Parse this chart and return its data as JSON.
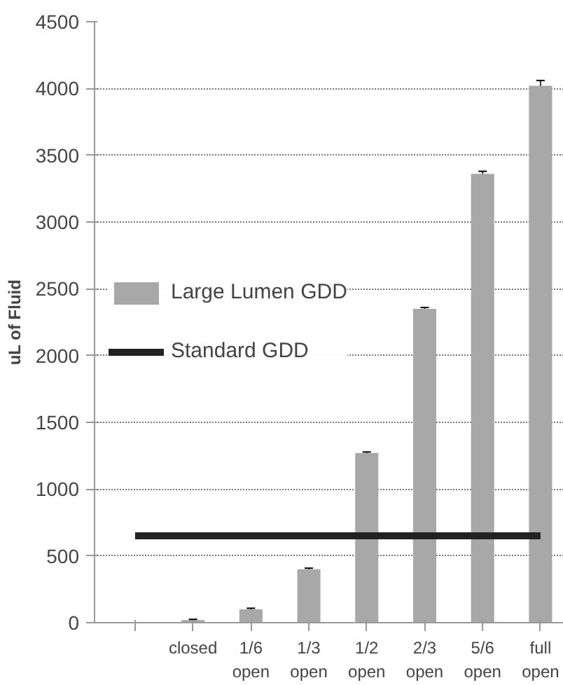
{
  "chart_data": {
    "type": "bar",
    "ylabel": "uL of Fluid",
    "categories": [
      null,
      "closed",
      "1/6\nopen",
      "1/3\nopen",
      "1/2\nopen",
      "2/3\nopen",
      "5/6\nopen",
      "full\nopen"
    ],
    "series": [
      {
        "name": "Large Lumen GDD",
        "color": "#a8a8a8",
        "values": [
          null,
          20,
          100,
          400,
          1270,
          2350,
          3360,
          4020
        ],
        "errors": [
          null,
          5,
          8,
          8,
          8,
          10,
          20,
          40
        ]
      },
      {
        "name": "Standard GDD",
        "type": "line",
        "color": "#222222",
        "values": [
          650,
          650,
          650,
          650,
          650,
          650,
          650,
          650
        ]
      }
    ],
    "ylim": [
      0,
      4500
    ],
    "yticks": [
      0,
      500,
      1000,
      1500,
      2000,
      2500,
      3000,
      3500,
      4000,
      4500
    ],
    "grid": "y",
    "legend": "left"
  }
}
